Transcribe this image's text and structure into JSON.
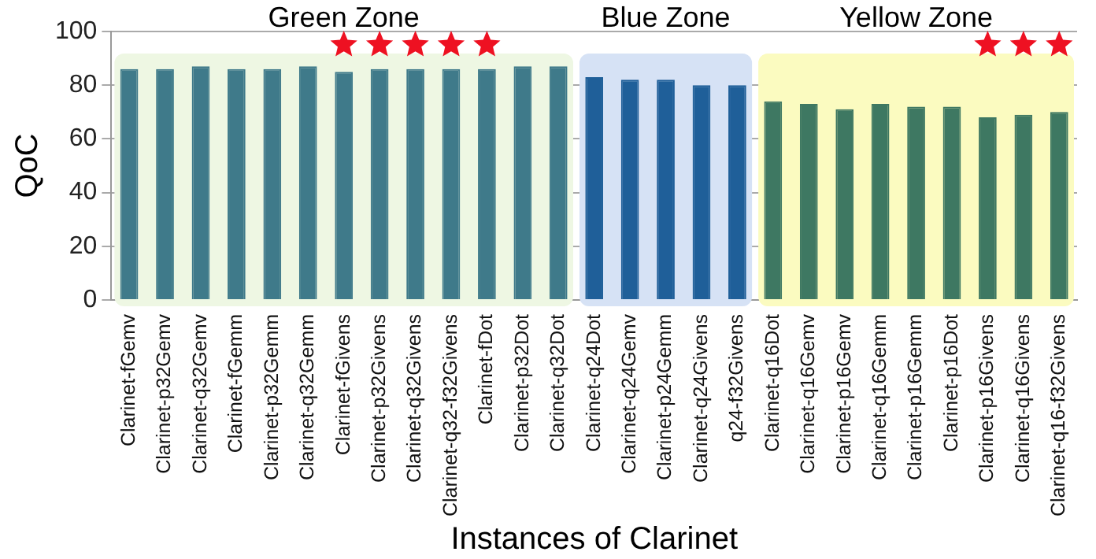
{
  "chart_data": {
    "type": "bar",
    "xlabel": "Instances of Clarinet",
    "ylabel": "QoC",
    "categories": [
      "Clarinet-fGemv",
      "Clarinet-p32Gemv",
      "Clarinet-q32Gemv",
      "Clarinet-fGemm",
      "Clarinet-p32Gemm",
      "Clarinet-q32Gemm",
      "Clarinet-fGivens",
      "Clarinet-p32Givens",
      "Clarinet-q32Givens",
      "Clarinet-q32-f32Givens",
      "Clarinet-fDot",
      "Clarinet-p32Dot",
      "Clarinet-q32Dot",
      "Clarinet-q24Dot",
      "Clarinet-q24Gemv",
      "Clarinet-p24Gemm",
      "Clarinet-q24Givens",
      "q24-f32Givens",
      "Clarinet-q16Dot",
      "Clarinet-q16Gemv",
      "Clarinet-p16Gemv",
      "Clarinet-q16Gemm",
      "Clarinet-p16Gemm",
      "Clarinet-p16Dot",
      "Clarinet-p16Givens",
      "Clarinet-q16Givens",
      "Clarinet-q16-f32Givens"
    ],
    "series": [
      {
        "values": [
          86,
          86,
          87,
          86,
          86,
          87,
          85,
          86,
          86,
          86,
          86,
          87,
          87,
          83,
          82,
          82,
          80,
          80,
          74,
          73,
          71,
          73,
          72,
          72,
          68,
          69,
          70
        ],
        "colors": [
          "#3f7a8a",
          "#3f7a8a",
          "#3f7a8a",
          "#3f7a8a",
          "#3f7a8a",
          "#3f7a8a",
          "#3f7a8a",
          "#3f7a8a",
          "#3f7a8a",
          "#3f7a8a",
          "#3f7a8a",
          "#3f7a8a",
          "#3f7a8a",
          "#1f5f99",
          "#1f5f99",
          "#1f5f99",
          "#1f5f99",
          "#1f5f99",
          "#3e7862",
          "#3e7862",
          "#3e7862",
          "#3e7862",
          "#3e7862",
          "#3e7862",
          "#3e7862",
          "#3e7862",
          "#3e7862"
        ]
      },
      {
        "type": "scatter",
        "marker": "star",
        "color": "#ee1122",
        "x": [
          "Clarinet-fGivens",
          "Clarinet-p32Givens",
          "Clarinet-q32Givens",
          "Clarinet-q32-f32Givens",
          "Clarinet-fDot",
          "Clarinet-p16Givens",
          "Clarinet-q16Givens",
          "Clarinet-q16-f32Givens"
        ],
        "values": [
          95,
          95,
          95,
          95,
          95,
          95,
          95,
          95
        ]
      }
    ],
    "bands": [
      {
        "axis": "x",
        "from": "Clarinet-fGemv",
        "to": "Clarinet-q32Dot",
        "label": "Green Zone",
        "color": "#eef7e3"
      },
      {
        "axis": "x",
        "from": "Clarinet-q24Dot",
        "to": "q24-f32Givens",
        "label": "Blue Zone",
        "color": "#d6e2f5"
      },
      {
        "axis": "x",
        "from": "Clarinet-q16Dot",
        "to": "Clarinet-q16-f32Givens",
        "label": "Yellow Zone",
        "color": "#fbfbc0"
      }
    ],
    "ylim": [
      0,
      100
    ],
    "yticks": [
      0,
      20,
      40,
      60,
      80,
      100
    ],
    "grid": "y",
    "legend": false
  }
}
